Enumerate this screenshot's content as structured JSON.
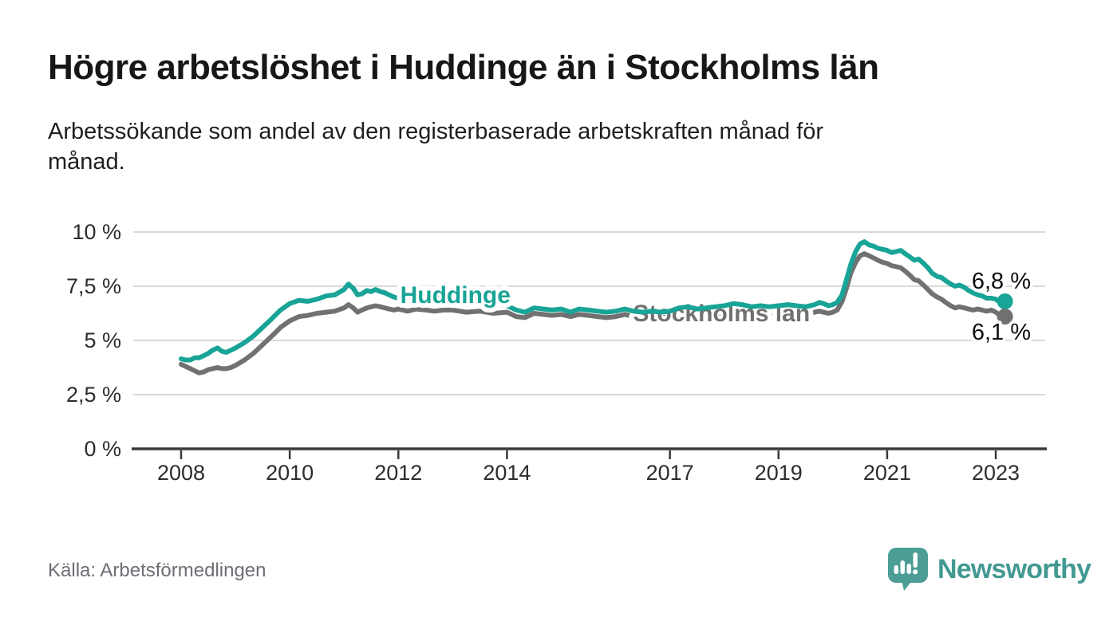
{
  "header": {
    "title": "Högre arbetslöshet i Huddinge än i Stockholms län",
    "subtitle": "Arbetssökande som andel av den registerbaserade arbetskraften månad för månad.",
    "subtitle_line1": "Arbetssökande som andel av den registerbaserade arbetskraften månad för",
    "subtitle_line2": "månad."
  },
  "footer": {
    "source": "Källa: Arbetsförmedlingen",
    "logo_text": "Newsworthy"
  },
  "colors": {
    "huddinge": "#18a496",
    "stockholm": "#717171",
    "axis": "#3a3a3a",
    "grid": "#dadada",
    "end_label_text": "#0f0f0f",
    "logo_teal": "#429992",
    "background": "#ffffff"
  },
  "chart_data": {
    "type": "line",
    "title": "",
    "xlabel": "",
    "ylabel": "",
    "unit": "%",
    "grid": true,
    "ylim": [
      0,
      10
    ],
    "xlim": [
      2007.1,
      2023.9
    ],
    "legend_position": "inline-line-labels",
    "y_ticks": [
      {
        "value": 0,
        "label": "0 %"
      },
      {
        "value": 2.5,
        "label": "2,5 %"
      },
      {
        "value": 5,
        "label": "5 %"
      },
      {
        "value": 7.5,
        "label": "7,5 %"
      },
      {
        "value": 10,
        "label": "10 %"
      }
    ],
    "x_ticks": [
      {
        "value": 2008,
        "label": "2008"
      },
      {
        "value": 2010,
        "label": "2010"
      },
      {
        "value": 2012,
        "label": "2012"
      },
      {
        "value": 2014,
        "label": "2014"
      },
      {
        "value": 2017,
        "label": "2017"
      },
      {
        "value": 2019,
        "label": "2019"
      },
      {
        "value": 2021,
        "label": "2021"
      },
      {
        "value": 2023,
        "label": "2023"
      }
    ],
    "series": [
      {
        "name": "Huddinge",
        "color": "#18a496",
        "end_label": "6,8 %",
        "end_value": 6.8,
        "label_pos": {
          "x_year": 2013.05,
          "y_pct": 6.73
        },
        "end_label_side": "above",
        "points": [
          [
            2008.0,
            4.15
          ],
          [
            2008.08,
            4.1
          ],
          [
            2008.17,
            4.1
          ],
          [
            2008.25,
            4.2
          ],
          [
            2008.33,
            4.2
          ],
          [
            2008.42,
            4.3
          ],
          [
            2008.5,
            4.4
          ],
          [
            2008.58,
            4.55
          ],
          [
            2008.67,
            4.65
          ],
          [
            2008.75,
            4.5
          ],
          [
            2008.83,
            4.45
          ],
          [
            2008.92,
            4.55
          ],
          [
            2009.0,
            4.65
          ],
          [
            2009.17,
            4.9
          ],
          [
            2009.33,
            5.2
          ],
          [
            2009.5,
            5.6
          ],
          [
            2009.67,
            6.0
          ],
          [
            2009.83,
            6.4
          ],
          [
            2010.0,
            6.7
          ],
          [
            2010.17,
            6.85
          ],
          [
            2010.33,
            6.8
          ],
          [
            2010.5,
            6.9
          ],
          [
            2010.67,
            7.05
          ],
          [
            2010.83,
            7.1
          ],
          [
            2011.0,
            7.35
          ],
          [
            2011.08,
            7.6
          ],
          [
            2011.17,
            7.4
          ],
          [
            2011.25,
            7.1
          ],
          [
            2011.33,
            7.15
          ],
          [
            2011.42,
            7.3
          ],
          [
            2011.5,
            7.25
          ],
          [
            2011.58,
            7.35
          ],
          [
            2011.67,
            7.25
          ],
          [
            2011.75,
            7.2
          ],
          [
            2011.83,
            7.1
          ],
          [
            2011.92,
            7.0
          ],
          [
            2012.0,
            6.95
          ],
          [
            2012.17,
            6.9
          ],
          [
            2012.33,
            7.0
          ],
          [
            2012.5,
            6.95
          ],
          [
            2012.67,
            6.9
          ],
          [
            2012.83,
            6.95
          ],
          [
            2013.0,
            6.9
          ],
          [
            2013.25,
            6.8
          ],
          [
            2013.5,
            6.85
          ],
          [
            2013.75,
            6.7
          ],
          [
            2014.0,
            6.6
          ],
          [
            2014.17,
            6.4
          ],
          [
            2014.33,
            6.3
          ],
          [
            2014.5,
            6.5
          ],
          [
            2014.67,
            6.45
          ],
          [
            2014.83,
            6.4
          ],
          [
            2015.0,
            6.45
          ],
          [
            2015.17,
            6.3
          ],
          [
            2015.33,
            6.45
          ],
          [
            2015.5,
            6.4
          ],
          [
            2015.67,
            6.35
          ],
          [
            2015.83,
            6.3
          ],
          [
            2016.0,
            6.35
          ],
          [
            2016.17,
            6.45
          ],
          [
            2016.33,
            6.35
          ],
          [
            2016.5,
            6.3
          ],
          [
            2016.67,
            6.35
          ],
          [
            2016.83,
            6.3
          ],
          [
            2017.0,
            6.35
          ],
          [
            2017.17,
            6.5
          ],
          [
            2017.33,
            6.55
          ],
          [
            2017.5,
            6.45
          ],
          [
            2017.67,
            6.5
          ],
          [
            2017.83,
            6.55
          ],
          [
            2018.0,
            6.6
          ],
          [
            2018.17,
            6.7
          ],
          [
            2018.33,
            6.65
          ],
          [
            2018.5,
            6.55
          ],
          [
            2018.67,
            6.6
          ],
          [
            2018.83,
            6.55
          ],
          [
            2019.0,
            6.6
          ],
          [
            2019.17,
            6.65
          ],
          [
            2019.33,
            6.6
          ],
          [
            2019.5,
            6.55
          ],
          [
            2019.67,
            6.65
          ],
          [
            2019.75,
            6.75
          ],
          [
            2019.83,
            6.7
          ],
          [
            2019.92,
            6.6
          ],
          [
            2020.0,
            6.65
          ],
          [
            2020.08,
            6.75
          ],
          [
            2020.17,
            7.1
          ],
          [
            2020.25,
            7.8
          ],
          [
            2020.33,
            8.5
          ],
          [
            2020.42,
            9.1
          ],
          [
            2020.5,
            9.45
          ],
          [
            2020.58,
            9.55
          ],
          [
            2020.67,
            9.4
          ],
          [
            2020.75,
            9.35
          ],
          [
            2020.83,
            9.25
          ],
          [
            2020.92,
            9.2
          ],
          [
            2021.0,
            9.15
          ],
          [
            2021.08,
            9.05
          ],
          [
            2021.17,
            9.1
          ],
          [
            2021.25,
            9.15
          ],
          [
            2021.33,
            9.0
          ],
          [
            2021.42,
            8.85
          ],
          [
            2021.5,
            8.7
          ],
          [
            2021.58,
            8.75
          ],
          [
            2021.67,
            8.55
          ],
          [
            2021.75,
            8.35
          ],
          [
            2021.83,
            8.1
          ],
          [
            2021.92,
            7.95
          ],
          [
            2022.0,
            7.9
          ],
          [
            2022.08,
            7.75
          ],
          [
            2022.17,
            7.6
          ],
          [
            2022.25,
            7.5
          ],
          [
            2022.33,
            7.55
          ],
          [
            2022.42,
            7.45
          ],
          [
            2022.5,
            7.3
          ],
          [
            2022.58,
            7.2
          ],
          [
            2022.67,
            7.1
          ],
          [
            2022.75,
            7.05
          ],
          [
            2022.83,
            6.95
          ],
          [
            2022.92,
            6.95
          ],
          [
            2023.0,
            6.9
          ],
          [
            2023.08,
            6.75
          ],
          [
            2023.17,
            6.8
          ]
        ]
      },
      {
        "name": "Stockholms län",
        "color": "#717171",
        "end_label": "6,1 %",
        "end_value": 6.1,
        "label_pos": {
          "x_year": 2017.95,
          "y_pct": 5.88
        },
        "end_label_side": "below",
        "points": [
          [
            2008.0,
            3.9
          ],
          [
            2008.08,
            3.8
          ],
          [
            2008.17,
            3.7
          ],
          [
            2008.25,
            3.6
          ],
          [
            2008.33,
            3.5
          ],
          [
            2008.42,
            3.55
          ],
          [
            2008.5,
            3.65
          ],
          [
            2008.58,
            3.7
          ],
          [
            2008.67,
            3.75
          ],
          [
            2008.75,
            3.7
          ],
          [
            2008.83,
            3.7
          ],
          [
            2008.92,
            3.75
          ],
          [
            2009.0,
            3.85
          ],
          [
            2009.17,
            4.1
          ],
          [
            2009.33,
            4.4
          ],
          [
            2009.5,
            4.8
          ],
          [
            2009.67,
            5.2
          ],
          [
            2009.83,
            5.6
          ],
          [
            2010.0,
            5.9
          ],
          [
            2010.17,
            6.1
          ],
          [
            2010.33,
            6.15
          ],
          [
            2010.5,
            6.25
          ],
          [
            2010.67,
            6.3
          ],
          [
            2010.83,
            6.35
          ],
          [
            2011.0,
            6.5
          ],
          [
            2011.08,
            6.65
          ],
          [
            2011.17,
            6.5
          ],
          [
            2011.25,
            6.3
          ],
          [
            2011.33,
            6.4
          ],
          [
            2011.42,
            6.5
          ],
          [
            2011.5,
            6.55
          ],
          [
            2011.58,
            6.6
          ],
          [
            2011.67,
            6.55
          ],
          [
            2011.75,
            6.5
          ],
          [
            2011.83,
            6.45
          ],
          [
            2011.92,
            6.4
          ],
          [
            2012.0,
            6.45
          ],
          [
            2012.17,
            6.35
          ],
          [
            2012.33,
            6.45
          ],
          [
            2012.5,
            6.4
          ],
          [
            2012.67,
            6.35
          ],
          [
            2012.83,
            6.4
          ],
          [
            2013.0,
            6.4
          ],
          [
            2013.25,
            6.3
          ],
          [
            2013.5,
            6.35
          ],
          [
            2013.75,
            6.25
          ],
          [
            2014.0,
            6.3
          ],
          [
            2014.17,
            6.1
          ],
          [
            2014.33,
            6.05
          ],
          [
            2014.5,
            6.25
          ],
          [
            2014.67,
            6.2
          ],
          [
            2014.83,
            6.15
          ],
          [
            2015.0,
            6.2
          ],
          [
            2015.17,
            6.1
          ],
          [
            2015.33,
            6.2
          ],
          [
            2015.5,
            6.15
          ],
          [
            2015.67,
            6.1
          ],
          [
            2015.83,
            6.05
          ],
          [
            2016.0,
            6.1
          ],
          [
            2016.17,
            6.2
          ],
          [
            2016.33,
            6.1
          ],
          [
            2016.5,
            6.05
          ],
          [
            2016.67,
            6.1
          ],
          [
            2016.83,
            6.05
          ],
          [
            2017.0,
            6.1
          ],
          [
            2017.17,
            6.2
          ],
          [
            2017.33,
            6.25
          ],
          [
            2017.5,
            6.15
          ],
          [
            2017.67,
            6.2
          ],
          [
            2017.83,
            6.25
          ],
          [
            2018.0,
            6.3
          ],
          [
            2018.17,
            6.35
          ],
          [
            2018.33,
            6.3
          ],
          [
            2018.5,
            6.25
          ],
          [
            2018.67,
            6.3
          ],
          [
            2018.83,
            6.25
          ],
          [
            2019.0,
            6.3
          ],
          [
            2019.17,
            6.35
          ],
          [
            2019.33,
            6.3
          ],
          [
            2019.5,
            6.25
          ],
          [
            2019.67,
            6.3
          ],
          [
            2019.75,
            6.35
          ],
          [
            2019.83,
            6.3
          ],
          [
            2019.92,
            6.25
          ],
          [
            2020.0,
            6.3
          ],
          [
            2020.08,
            6.4
          ],
          [
            2020.17,
            6.8
          ],
          [
            2020.25,
            7.4
          ],
          [
            2020.33,
            8.1
          ],
          [
            2020.42,
            8.6
          ],
          [
            2020.5,
            8.9
          ],
          [
            2020.58,
            9.0
          ],
          [
            2020.67,
            8.9
          ],
          [
            2020.75,
            8.8
          ],
          [
            2020.83,
            8.7
          ],
          [
            2020.92,
            8.6
          ],
          [
            2021.0,
            8.55
          ],
          [
            2021.08,
            8.45
          ],
          [
            2021.17,
            8.4
          ],
          [
            2021.25,
            8.35
          ],
          [
            2021.33,
            8.2
          ],
          [
            2021.42,
            8.0
          ],
          [
            2021.5,
            7.8
          ],
          [
            2021.58,
            7.75
          ],
          [
            2021.67,
            7.55
          ],
          [
            2021.75,
            7.35
          ],
          [
            2021.83,
            7.15
          ],
          [
            2021.92,
            7.0
          ],
          [
            2022.0,
            6.9
          ],
          [
            2022.08,
            6.75
          ],
          [
            2022.17,
            6.6
          ],
          [
            2022.25,
            6.5
          ],
          [
            2022.33,
            6.55
          ],
          [
            2022.42,
            6.5
          ],
          [
            2022.5,
            6.45
          ],
          [
            2022.58,
            6.4
          ],
          [
            2022.67,
            6.45
          ],
          [
            2022.75,
            6.4
          ],
          [
            2022.83,
            6.35
          ],
          [
            2022.92,
            6.4
          ],
          [
            2023.0,
            6.3
          ],
          [
            2023.08,
            6.15
          ],
          [
            2023.17,
            6.1
          ]
        ]
      }
    ]
  }
}
